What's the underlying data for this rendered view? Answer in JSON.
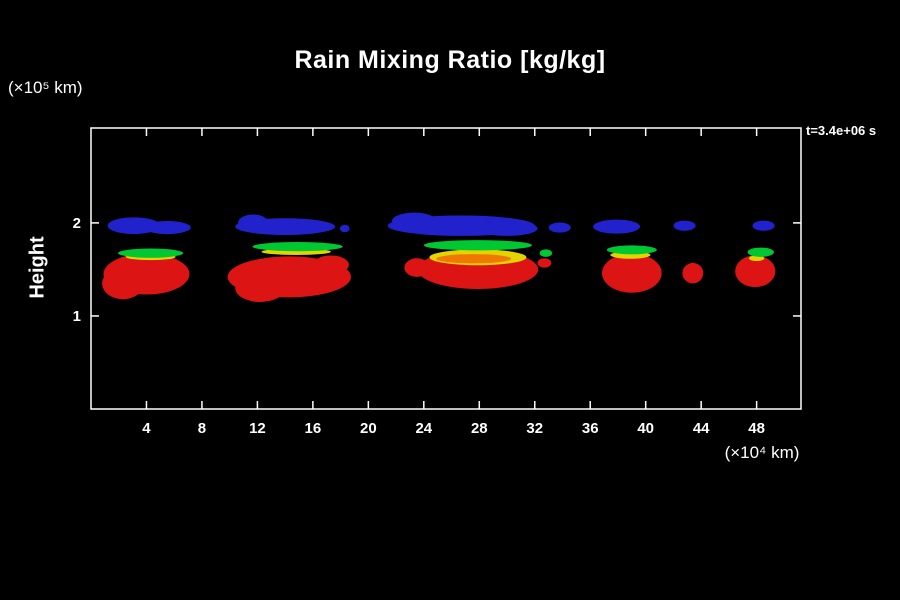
{
  "title": "Rain Mixing Ratio [kg/kg]",
  "labels": {
    "y_units": "(×10⁵ km)",
    "x_units": "(×10⁴ km)",
    "y_axis": "Height",
    "time": "t=3.4e+06 s"
  },
  "chart_data": {
    "type": "heatmap",
    "title": "Rain Mixing Ratio [kg/kg]",
    "xlabel": "(×10⁴ km)",
    "ylabel": "Height (×10⁵ km)",
    "xlim": [
      0,
      51.2
    ],
    "ylim": [
      0,
      3.02
    ],
    "x_ticks": [
      4,
      8,
      12,
      16,
      20,
      24,
      28,
      32,
      36,
      40,
      44,
      48
    ],
    "y_ticks": [
      1,
      2
    ],
    "time_annotation": "t=3.4e+06 s",
    "background": "#000000",
    "axis_color": "#ffffff",
    "palette": {
      "blue": "#2222cc",
      "green": "#00c832",
      "yellow": "#e2d400",
      "orange": "#f07800",
      "red": "#dd1414"
    },
    "regions": [
      {
        "color": "blue",
        "cx": 3.1,
        "cy": 1.97,
        "rx": 1.9,
        "ry": 0.09
      },
      {
        "color": "blue",
        "cx": 5.5,
        "cy": 1.95,
        "rx": 1.7,
        "ry": 0.07
      },
      {
        "color": "blue",
        "cx": 14.0,
        "cy": 1.96,
        "rx": 3.6,
        "ry": 0.09
      },
      {
        "color": "blue",
        "cx": 11.7,
        "cy": 2.0,
        "rx": 1.1,
        "ry": 0.09
      },
      {
        "color": "blue",
        "cx": 18.3,
        "cy": 1.94,
        "rx": 0.35,
        "ry": 0.04
      },
      {
        "color": "blue",
        "cx": 26.7,
        "cy": 1.97,
        "rx": 5.3,
        "ry": 0.11
      },
      {
        "color": "blue",
        "cx": 23.3,
        "cy": 2.02,
        "rx": 1.6,
        "ry": 0.09
      },
      {
        "color": "blue",
        "cx": 30.0,
        "cy": 1.94,
        "rx": 2.2,
        "ry": 0.08
      },
      {
        "color": "blue",
        "cx": 33.8,
        "cy": 1.95,
        "rx": 0.8,
        "ry": 0.055
      },
      {
        "color": "blue",
        "cx": 37.9,
        "cy": 1.96,
        "rx": 1.7,
        "ry": 0.075
      },
      {
        "color": "blue",
        "cx": 42.8,
        "cy": 1.97,
        "rx": 0.8,
        "ry": 0.055
      },
      {
        "color": "blue",
        "cx": 48.5,
        "cy": 1.97,
        "rx": 0.8,
        "ry": 0.055
      },
      {
        "color": "red",
        "cx": 4.0,
        "cy": 1.45,
        "rx": 3.1,
        "ry": 0.22
      },
      {
        "color": "red",
        "cx": 2.3,
        "cy": 1.35,
        "rx": 1.5,
        "ry": 0.17
      },
      {
        "color": "red",
        "cx": 14.3,
        "cy": 1.42,
        "rx": 4.45,
        "ry": 0.22
      },
      {
        "color": "red",
        "cx": 12.2,
        "cy": 1.3,
        "rx": 1.8,
        "ry": 0.15
      },
      {
        "color": "red",
        "cx": 17.3,
        "cy": 1.55,
        "rx": 1.3,
        "ry": 0.1
      },
      {
        "color": "red",
        "cx": 27.9,
        "cy": 1.5,
        "rx": 4.35,
        "ry": 0.21
      },
      {
        "color": "red",
        "cx": 23.5,
        "cy": 1.52,
        "rx": 0.9,
        "ry": 0.1
      },
      {
        "color": "red",
        "cx": 32.7,
        "cy": 1.57,
        "rx": 0.5,
        "ry": 0.05
      },
      {
        "color": "red",
        "cx": 39.0,
        "cy": 1.46,
        "rx": 2.15,
        "ry": 0.21
      },
      {
        "color": "red",
        "cx": 43.4,
        "cy": 1.46,
        "rx": 0.75,
        "ry": 0.11
      },
      {
        "color": "red",
        "cx": 47.9,
        "cy": 1.48,
        "rx": 1.45,
        "ry": 0.17
      },
      {
        "color": "yellow",
        "cx": 4.3,
        "cy": 1.635,
        "rx": 1.8,
        "ry": 0.035
      },
      {
        "color": "yellow",
        "cx": 14.8,
        "cy": 1.69,
        "rx": 2.5,
        "ry": 0.035
      },
      {
        "color": "yellow",
        "cx": 27.9,
        "cy": 1.63,
        "rx": 3.5,
        "ry": 0.085
      },
      {
        "color": "yellow",
        "cx": 38.9,
        "cy": 1.655,
        "rx": 1.45,
        "ry": 0.04
      },
      {
        "color": "yellow",
        "cx": 48.0,
        "cy": 1.62,
        "rx": 0.55,
        "ry": 0.03
      },
      {
        "color": "orange",
        "cx": 27.6,
        "cy": 1.615,
        "rx": 2.7,
        "ry": 0.05
      },
      {
        "color": "green",
        "cx": 4.3,
        "cy": 1.675,
        "rx": 2.35,
        "ry": 0.05
      },
      {
        "color": "green",
        "cx": 14.9,
        "cy": 1.745,
        "rx": 3.25,
        "ry": 0.05
      },
      {
        "color": "green",
        "cx": 27.9,
        "cy": 1.76,
        "rx": 3.9,
        "ry": 0.055
      },
      {
        "color": "green",
        "cx": 32.8,
        "cy": 1.675,
        "rx": 0.45,
        "ry": 0.04
      },
      {
        "color": "green",
        "cx": 39.0,
        "cy": 1.71,
        "rx": 1.8,
        "ry": 0.048
      },
      {
        "color": "green",
        "cx": 48.3,
        "cy": 1.685,
        "rx": 0.95,
        "ry": 0.05
      }
    ]
  }
}
